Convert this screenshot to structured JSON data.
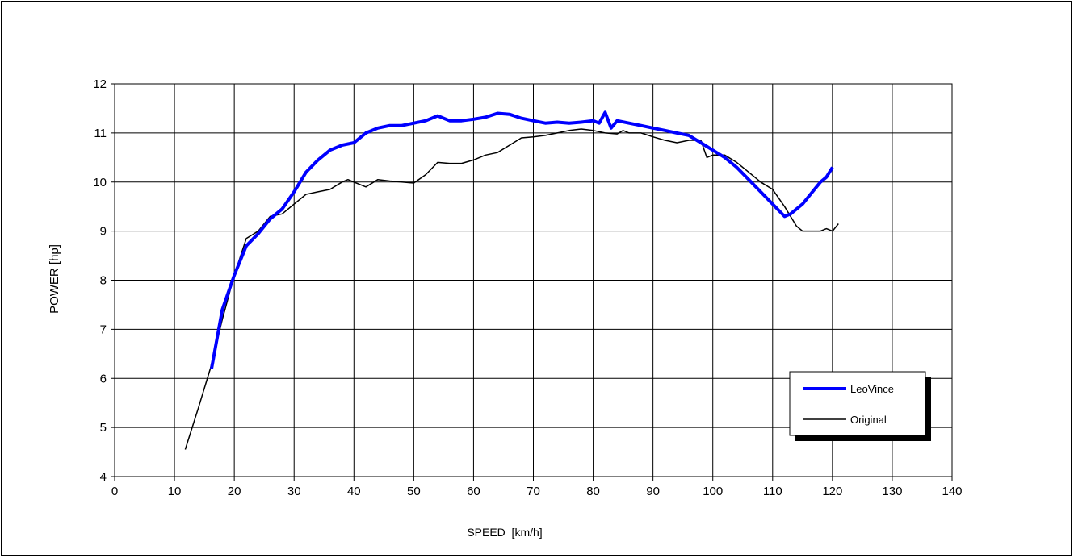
{
  "chart_data": {
    "type": "line",
    "title": "",
    "xlabel": "SPEED  [km/h]",
    "ylabel": "POWER [hp]",
    "xlim": [
      0,
      140
    ],
    "ylim": [
      4,
      12
    ],
    "x_ticks": [
      "0",
      "10",
      "20",
      "30",
      "40",
      "50",
      "60",
      "70",
      "80",
      "90",
      "100",
      "110",
      "120",
      "130",
      "140"
    ],
    "y_ticks": [
      "4",
      "5",
      "6",
      "7",
      "8",
      "9",
      "10",
      "11",
      "12"
    ],
    "grid": true,
    "legend_position": "bottom-right",
    "series": [
      {
        "name": "LeoVince",
        "color": "#0000ff",
        "x": [
          16.2,
          18,
          20,
          22,
          24,
          26,
          28,
          30,
          32,
          34,
          36,
          38,
          40,
          42,
          44,
          46,
          48,
          50,
          52,
          54,
          56,
          58,
          60,
          62,
          64,
          66,
          68,
          70,
          72,
          74,
          76,
          78,
          80,
          81,
          82,
          83,
          84,
          86,
          88,
          90,
          92,
          94,
          96,
          98,
          100,
          102,
          104,
          106,
          108,
          110,
          112,
          113,
          114,
          115,
          116,
          117,
          118,
          119,
          120
        ],
        "y": [
          6.2,
          7.4,
          8.1,
          8.7,
          8.95,
          9.25,
          9.45,
          9.8,
          10.2,
          10.45,
          10.65,
          10.75,
          10.8,
          11.0,
          11.1,
          11.15,
          11.15,
          11.2,
          11.25,
          11.35,
          11.25,
          11.25,
          11.28,
          11.32,
          11.4,
          11.38,
          11.3,
          11.25,
          11.2,
          11.22,
          11.2,
          11.22,
          11.25,
          11.2,
          11.42,
          11.1,
          11.25,
          11.2,
          11.15,
          11.1,
          11.05,
          11.0,
          10.95,
          10.8,
          10.65,
          10.5,
          10.3,
          10.05,
          9.8,
          9.55,
          9.3,
          9.35,
          9.45,
          9.55,
          9.7,
          9.85,
          10.0,
          10.1,
          10.3
        ]
      },
      {
        "name": "Original",
        "color": "#000000",
        "x": [
          11.8,
          14,
          16,
          18,
          20,
          22,
          24,
          26,
          28,
          30,
          32,
          34,
          36,
          38,
          39,
          40,
          42,
          44,
          46,
          48,
          50,
          52,
          54,
          56,
          58,
          60,
          62,
          64,
          66,
          68,
          70,
          72,
          74,
          76,
          78,
          80,
          82,
          84,
          85,
          86,
          88,
          90,
          92,
          94,
          96,
          98,
          99,
          100,
          102,
          104,
          106,
          108,
          110,
          112,
          114,
          115,
          116,
          118,
          119,
          120,
          121
        ],
        "y": [
          4.55,
          5.4,
          6.2,
          7.2,
          8.1,
          8.85,
          9.0,
          9.3,
          9.35,
          9.55,
          9.75,
          9.8,
          9.85,
          10.0,
          10.05,
          10.0,
          9.9,
          10.05,
          10.02,
          10.0,
          9.98,
          10.15,
          10.4,
          10.38,
          10.38,
          10.45,
          10.55,
          10.6,
          10.75,
          10.9,
          10.92,
          10.95,
          11.0,
          11.05,
          11.08,
          11.05,
          11.0,
          10.98,
          11.05,
          11.0,
          11.0,
          10.92,
          10.85,
          10.8,
          10.85,
          10.85,
          10.5,
          10.55,
          10.55,
          10.4,
          10.2,
          10.0,
          9.85,
          9.5,
          9.1,
          9.0,
          9.0,
          9.0,
          9.05,
          9.0,
          9.15
        ]
      }
    ]
  }
}
